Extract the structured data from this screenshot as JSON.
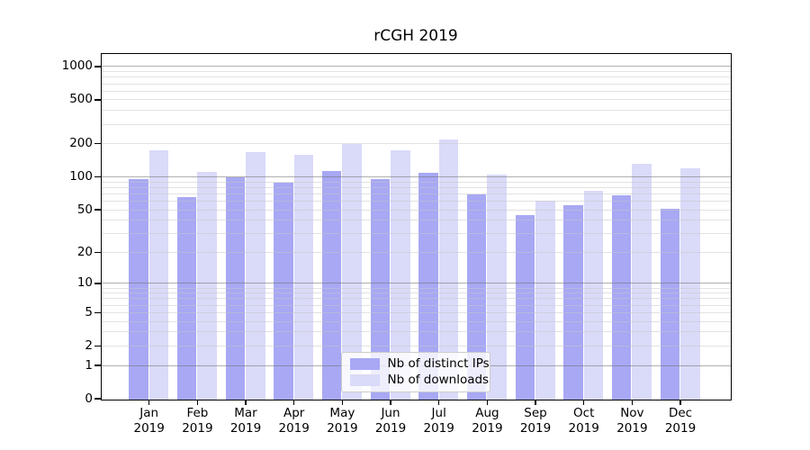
{
  "chart_data": {
    "type": "bar",
    "title": "rCGH 2019",
    "x": {
      "months": [
        "Jan",
        "Feb",
        "Mar",
        "Apr",
        "May",
        "Jun",
        "Jul",
        "Aug",
        "Sep",
        "Oct",
        "Nov",
        "Dec"
      ],
      "year": "2019"
    },
    "y_axis": {
      "scale": "log1p",
      "tick_values": [
        1000,
        500,
        200,
        100,
        50,
        20,
        10,
        5,
        2,
        1,
        0
      ],
      "tick_labels": [
        "1000",
        "500",
        "200",
        "100",
        "50",
        "20",
        "10",
        "5",
        "2",
        "1",
        "0"
      ],
      "ylim": [
        0,
        1300
      ],
      "minor_grid_values": [
        2,
        3,
        4,
        5,
        6,
        7,
        8,
        9,
        20,
        30,
        40,
        50,
        60,
        70,
        80,
        90,
        200,
        300,
        400,
        500,
        600,
        700,
        800,
        900
      ],
      "major_grid_values": [
        1,
        10,
        100,
        1000
      ]
    },
    "series": [
      {
        "name": "Nb of distinct IPs",
        "color": "#a8a8f4",
        "values": [
          97,
          66,
          100,
          90,
          114,
          97,
          110,
          70,
          45,
          56,
          68,
          51
        ]
      },
      {
        "name": "Nb of downloads",
        "color": "#dadaf9",
        "values": [
          175,
          111,
          170,
          159,
          200,
          175,
          222,
          105,
          61,
          76,
          134,
          120
        ]
      }
    ],
    "legend": {
      "position": "lower center"
    },
    "grid": true
  }
}
